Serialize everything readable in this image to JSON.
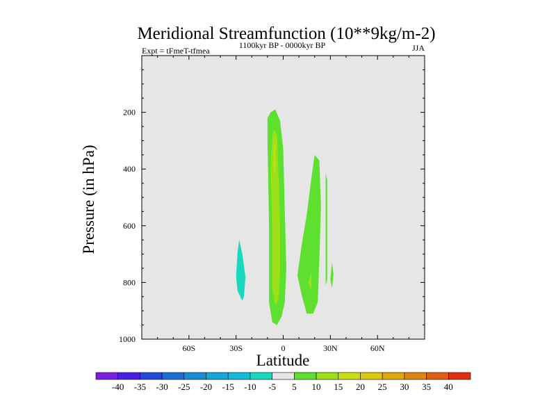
{
  "chart_data": {
    "type": "filled-contour",
    "title": "Meridional Streamfunction (10**9kg/m-2)",
    "left_label": "Expt = tFmeT-tfmea",
    "center_label": "1100kyr BP - 0000kyr BP",
    "right_label": "JJA",
    "xlabel": "Latitude",
    "ylabel": "Pressure (in hPa)",
    "x_range": [
      -90,
      90
    ],
    "y_range": [
      1000,
      0
    ],
    "x_ticks": [
      -60,
      -30,
      0,
      30,
      60
    ],
    "x_tick_labels": [
      "60S",
      "30S",
      "0",
      "30N",
      "60N"
    ],
    "y_ticks": [
      200,
      400,
      600,
      800,
      1000
    ],
    "y_tick_labels": [
      "200",
      "400",
      "600",
      "800",
      "1000"
    ],
    "background_color": "#e6e6e6",
    "colorbar": {
      "labels": [
        "-40",
        "-35",
        "-30",
        "-25",
        "-20",
        "-15",
        "-10",
        "-5",
        "5",
        "10",
        "15",
        "20",
        "25",
        "30",
        "35",
        "40"
      ],
      "colors": [
        "#7a1fe0",
        "#4a20e0",
        "#2448d8",
        "#1c6ed8",
        "#1a8cd8",
        "#16a6d8",
        "#12bcd8",
        "#18d8c0",
        "#e6e6e6",
        "#5ee030",
        "#9ee018",
        "#c8dc18",
        "#dcc810",
        "#e0a610",
        "#e08410",
        "#e05e10",
        "#e03010"
      ]
    },
    "regions": [
      {
        "name": "southern-negative-cell",
        "level": "-10 to -5",
        "color": "#18d8c0",
        "points": [
          [
            -28,
            650
          ],
          [
            -26,
            700
          ],
          [
            -24,
            780
          ],
          [
            -25,
            850
          ],
          [
            -26,
            865
          ],
          [
            -29,
            830
          ],
          [
            -30,
            780
          ],
          [
            -29,
            690
          ]
        ]
      },
      {
        "name": "equatorial-cell-outer",
        "level": "5 to 10",
        "color": "#5ee030",
        "points": [
          [
            -8,
            200
          ],
          [
            -5,
            190
          ],
          [
            -2,
            230
          ],
          [
            0,
            330
          ],
          [
            1,
            550
          ],
          [
            2,
            750
          ],
          [
            1,
            870
          ],
          [
            -1,
            920
          ],
          [
            -4,
            950
          ],
          [
            -7,
            940
          ],
          [
            -9,
            870
          ],
          [
            -9,
            600
          ],
          [
            -10,
            300
          ],
          [
            -10,
            220
          ]
        ]
      },
      {
        "name": "equatorial-cell-inner",
        "level": "10 to 15",
        "color": "#9ee018",
        "points": [
          [
            -6,
            260
          ],
          [
            -4,
            280
          ],
          [
            -3,
            420
          ],
          [
            -2,
            600
          ],
          [
            -2,
            760
          ],
          [
            -3,
            860
          ],
          [
            -5,
            880
          ],
          [
            -7,
            820
          ],
          [
            -7,
            600
          ],
          [
            -8,
            400
          ],
          [
            -7,
            290
          ]
        ]
      },
      {
        "name": "equatorial-cell-core",
        "level": "15 to 20",
        "color": "#c8dc18",
        "points": [
          [
            -6,
            300
          ],
          [
            -5,
            320
          ],
          [
            -5,
            420
          ],
          [
            -6,
            400
          ]
        ]
      },
      {
        "name": "ne-cell-west",
        "level": "5 to 10",
        "color": "#5ee030",
        "points": [
          [
            9,
            775
          ],
          [
            12,
            660
          ],
          [
            15,
            560
          ],
          [
            18,
            430
          ],
          [
            20,
            350
          ],
          [
            23,
            370
          ],
          [
            24,
            530
          ],
          [
            23,
            720
          ],
          [
            22,
            870
          ],
          [
            19,
            910
          ],
          [
            15,
            910
          ],
          [
            12,
            850
          ]
        ]
      },
      {
        "name": "ne-cell-inner",
        "level": "10 to 15",
        "color": "#9ee018",
        "points": [
          [
            16,
            800
          ],
          [
            18,
            760
          ],
          [
            18,
            830
          ]
        ]
      },
      {
        "name": "ne-strip",
        "level": "5 to 10",
        "color": "#5ee030",
        "points": [
          [
            27,
            415
          ],
          [
            28,
            440
          ],
          [
            28,
            600
          ],
          [
            28,
            790
          ],
          [
            27,
            810
          ],
          [
            27,
            600
          ]
        ]
      },
      {
        "name": "ne-small-blob",
        "level": "5 to 10",
        "color": "#5ee030",
        "points": [
          [
            31,
            730
          ],
          [
            32,
            770
          ],
          [
            31,
            820
          ],
          [
            30,
            790
          ]
        ]
      }
    ]
  }
}
